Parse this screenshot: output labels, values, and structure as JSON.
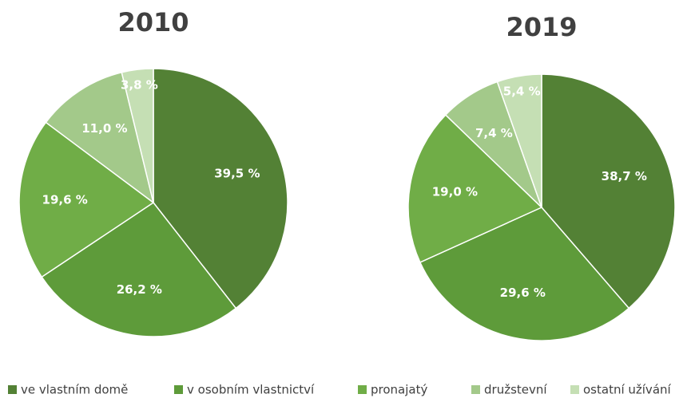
{
  "chart_data": [
    {
      "type": "pie",
      "title": "2010",
      "categories": [
        "ve vlastním domě",
        "v osobním vlastnictví",
        "pronajatý",
        "družstevní",
        "ostatní užívání"
      ],
      "values": [
        39.5,
        26.2,
        19.6,
        11.0,
        3.8
      ],
      "value_labels": [
        "39,5 %",
        "26,2 %",
        "19,6 %",
        "11,0 %",
        "3,8 %"
      ],
      "colors": [
        "#538135",
        "#5e9b3a",
        "#70ad47",
        "#a3c98a",
        "#c5dfb4"
      ]
    },
    {
      "type": "pie",
      "title": "2019",
      "categories": [
        "ve vlastním domě",
        "v osobním vlastnictví",
        "pronajatý",
        "družstevní",
        "ostatní užívání"
      ],
      "values": [
        38.7,
        29.6,
        19.0,
        7.4,
        5.4
      ],
      "value_labels": [
        "38,7 %",
        "29,6 %",
        "19,0 %",
        "7,4 %",
        "5,4 %"
      ],
      "colors": [
        "#538135",
        "#5e9b3a",
        "#70ad47",
        "#a3c98a",
        "#c5dfb4"
      ]
    }
  ]
}
